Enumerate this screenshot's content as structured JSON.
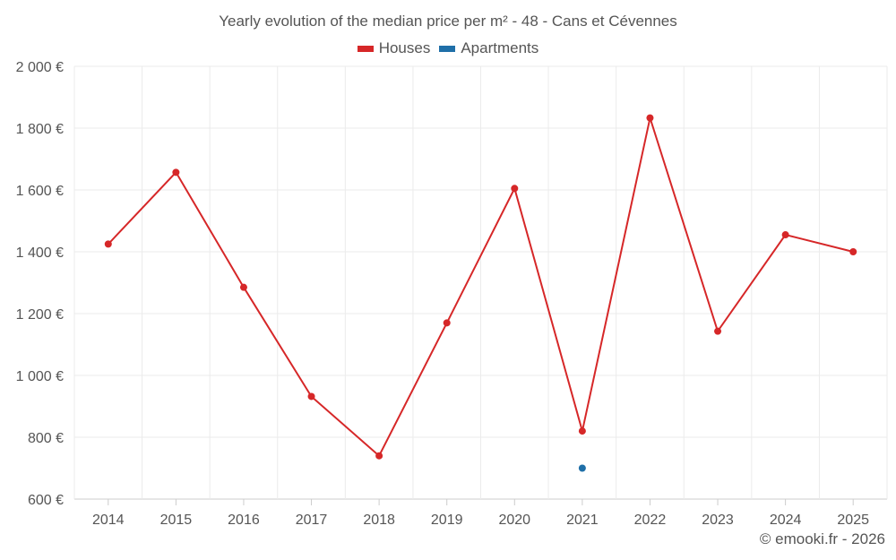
{
  "chart_data": {
    "type": "line",
    "title": "Yearly evolution of the median price per m² - 48 - Cans et Cévennes",
    "categories": [
      "2014",
      "2015",
      "2016",
      "2017",
      "2018",
      "2019",
      "2020",
      "2021",
      "2022",
      "2023",
      "2024",
      "2025"
    ],
    "series": [
      {
        "name": "Houses",
        "color": "#d62728",
        "values": [
          1425,
          1657,
          1285,
          932,
          740,
          1170,
          1605,
          820,
          1833,
          1143,
          1455,
          1400
        ]
      },
      {
        "name": "Apartments",
        "color": "#1f6fa8",
        "values": [
          null,
          null,
          null,
          null,
          null,
          null,
          null,
          700,
          null,
          null,
          null,
          null
        ]
      }
    ],
    "ylim": [
      600,
      2000
    ],
    "yticks": [
      600,
      800,
      1000,
      1200,
      1400,
      1600,
      1800,
      2000
    ],
    "ytick_labels": [
      "600 €",
      "800 €",
      "1 000 €",
      "1 200 €",
      "1 400 €",
      "1 600 €",
      "1 800 €",
      "2 000 €"
    ],
    "xlabel": "",
    "ylabel": "",
    "grid": true,
    "legend": "top-center"
  },
  "credit": "© emooki.fr - 2026"
}
